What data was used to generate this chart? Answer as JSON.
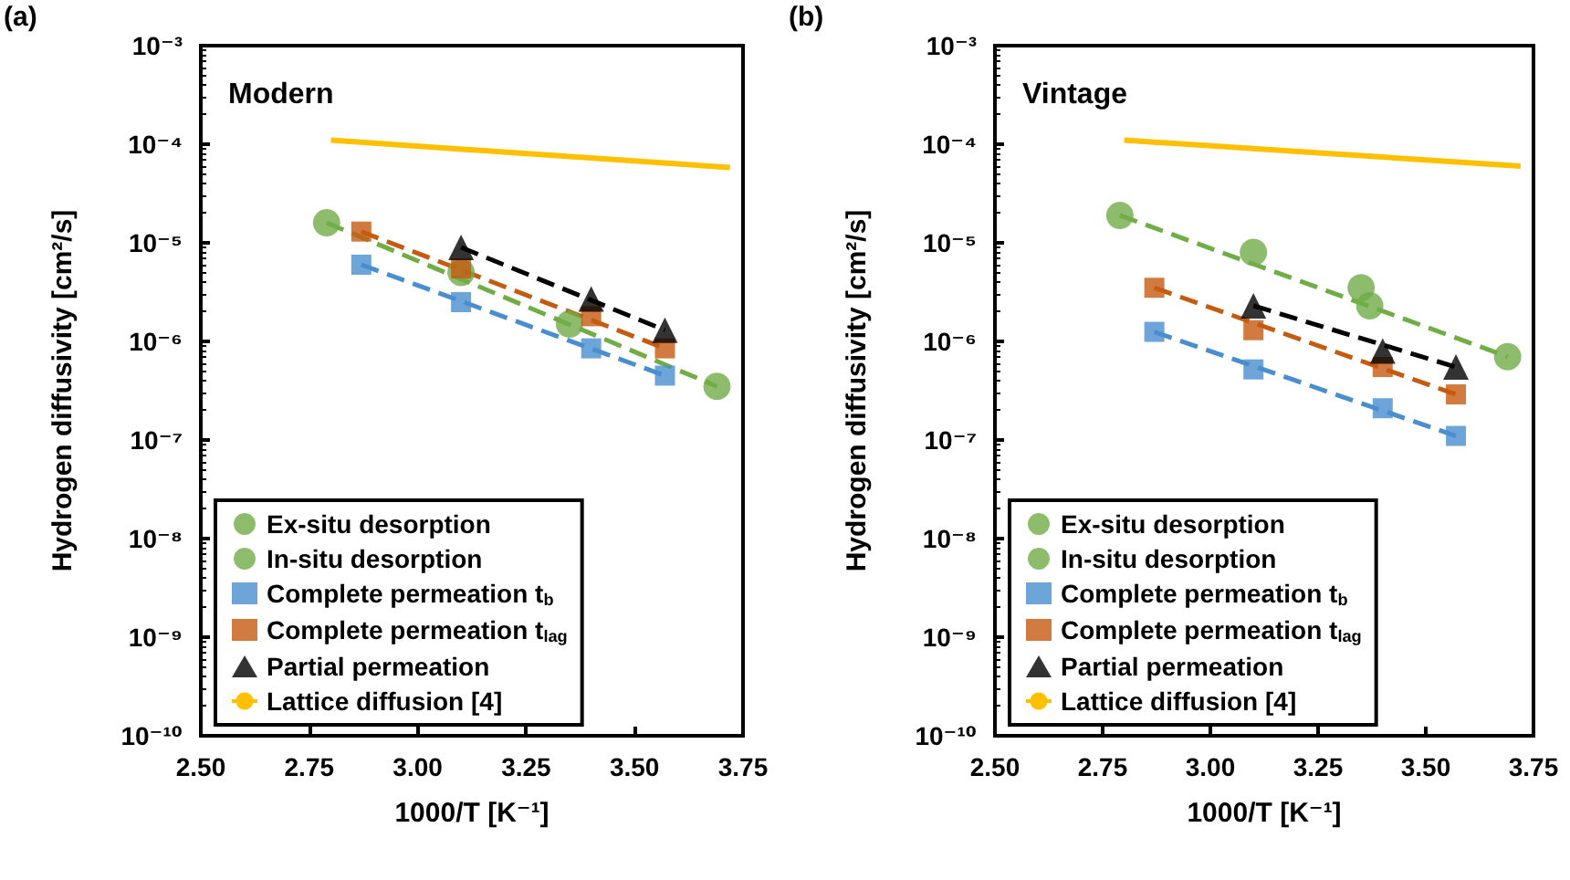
{
  "chart_data": [
    {
      "type": "scatter",
      "title": "Modern",
      "annotations": [
        "(a)"
      ],
      "xlabel": "1000/T [K⁻¹]",
      "ylabel": "Hydrogen diffusivity [cm²/s]",
      "xlim": [
        2.5,
        3.75
      ],
      "xticks": [
        {
          "value": 2.5,
          "label": "2.50"
        },
        2.75,
        {
          "value": 3.0,
          "label": "3.00"
        },
        3.25,
        {
          "value": 3.5,
          "label": "3.50"
        },
        3.75
      ],
      "ylim": [
        1e-10,
        0.001
      ],
      "yticks": [
        {
          "value": 1e-10,
          "label": "10⁻¹⁰"
        },
        {
          "value": 1e-09,
          "label": "10⁻⁹"
        },
        {
          "value": 1e-08,
          "label": "10⁻⁸"
        },
        {
          "value": 1e-07,
          "label": "10⁻⁷"
        },
        {
          "value": 1e-06,
          "label": "10⁻⁶"
        },
        {
          "value": 1e-05,
          "label": "10⁻⁵"
        },
        {
          "value": 0.0001,
          "label": "10⁻⁴"
        },
        {
          "value": 0.001,
          "label": "10⁻³"
        }
      ],
      "log": "y",
      "grid": false,
      "legend": "bottom left",
      "series": [
        {
          "name": "Ex-situ desorption",
          "color": "#70ad47",
          "marker": "circle",
          "x": [
            2.79,
            3.1,
            3.35
          ],
          "values": [
            1.6e-05,
            5e-06,
            1.5e-06
          ]
        },
        {
          "name": "In-situ desorption",
          "color": "#70ad47",
          "marker": "circle",
          "x": [
            3.69
          ],
          "values": [
            3.5e-07
          ]
        },
        {
          "name": "Complete permeation t$_{b}$",
          "color": "#4a8ed0",
          "marker": "square",
          "x": [
            2.87,
            3.1,
            3.4,
            3.57
          ],
          "values": [
            6e-06,
            2.5e-06,
            8.5e-07,
            4.5e-07
          ]
        },
        {
          "name": "Complete permeation t$_{lag}$",
          "color": "#c55a11",
          "marker": "square",
          "x": [
            2.87,
            3.1,
            3.4,
            3.57
          ],
          "values": [
            1.3e-05,
            5.5e-06,
            1.8e-06,
            8.5e-07
          ]
        },
        {
          "name": "Partial permeation",
          "color": "#000000",
          "marker": "triangle",
          "x": [
            3.1,
            3.4,
            3.57
          ],
          "values": [
            9e-06,
            2.7e-06,
            1.3e-06
          ]
        },
        {
          "name": "Lattice diffusion [4]",
          "type": "line",
          "color": "#ffc000",
          "marker": "none",
          "line_style": "solid",
          "x": [
            2.8,
            3.72
          ],
          "values": [
            0.00011,
            5.8e-05
          ]
        },
        {
          "type": "line",
          "color": "#70ad47",
          "marker": "none",
          "line_style": "dashed",
          "x": [
            2.79,
            3.69
          ],
          "values": [
            1.6e-05,
            3.5e-07
          ]
        },
        {
          "type": "line",
          "color": "#4a8ed0",
          "marker": "none",
          "line_style": "dashed",
          "x": [
            2.87,
            3.57
          ],
          "values": [
            6e-06,
            4.5e-07
          ]
        },
        {
          "type": "line",
          "color": "#c55a11",
          "marker": "none",
          "line_style": "dashed",
          "x": [
            2.87,
            3.57
          ],
          "values": [
            1.3e-05,
            8.5e-07
          ]
        },
        {
          "type": "line",
          "color": "#000000",
          "marker": "none",
          "line_style": "dashed",
          "x": [
            3.1,
            3.57
          ],
          "values": [
            9e-06,
            1.3e-06
          ]
        }
      ]
    },
    {
      "type": "scatter",
      "title": "Vintage",
      "annotations": [
        "(b)"
      ],
      "xlabel": "1000/T [K⁻¹]",
      "ylabel": "Hydrogen diffusivity [cm²/s]",
      "xlim": [
        2.5,
        3.75
      ],
      "xticks": [
        {
          "value": 2.5,
          "label": "2.50"
        },
        2.75,
        {
          "value": 3.0,
          "label": "3.00"
        },
        3.25,
        {
          "value": 3.5,
          "label": "3.50"
        },
        3.75
      ],
      "ylim": [
        1e-10,
        0.001
      ],
      "yticks": [
        {
          "value": 1e-10,
          "label": "10⁻¹⁰"
        },
        {
          "value": 1e-09,
          "label": "10⁻⁹"
        },
        {
          "value": 1e-08,
          "label": "10⁻⁸"
        },
        {
          "value": 1e-07,
          "label": "10⁻⁷"
        },
        {
          "value": 1e-06,
          "label": "10⁻⁶"
        },
        {
          "value": 1e-05,
          "label": "10⁻⁵"
        },
        {
          "value": 0.0001,
          "label": "10⁻⁴"
        },
        {
          "value": 0.001,
          "label": "10⁻³"
        }
      ],
      "log": "y",
      "grid": false,
      "legend": "bottom left",
      "series": [
        {
          "name": "Ex-situ desorption",
          "color": "#70ad47",
          "marker": "circle",
          "x": [
            2.79,
            3.1,
            3.35
          ],
          "values": [
            1.9e-05,
            8e-06,
            3.5e-06
          ]
        },
        {
          "name": "In-situ desorption",
          "color": "#70ad47",
          "marker": "circle",
          "x": [
            3.37,
            3.69
          ],
          "values": [
            2.3e-06,
            7e-07
          ]
        },
        {
          "name": "Complete permeation t$_{b}$",
          "color": "#4a8ed0",
          "marker": "square",
          "x": [
            2.87,
            3.1,
            3.4,
            3.57
          ],
          "values": [
            1.25e-06,
            5.2e-07,
            2.1e-07,
            1.1e-07
          ]
        },
        {
          "name": "Complete permeation t$_{lag}$",
          "color": "#c55a11",
          "marker": "square",
          "x": [
            2.87,
            3.1,
            3.4,
            3.57
          ],
          "values": [
            3.5e-06,
            1.3e-06,
            5.5e-07,
            2.9e-07
          ]
        },
        {
          "name": "Partial permeation",
          "color": "#000000",
          "marker": "triangle",
          "x": [
            3.1,
            3.4,
            3.57
          ],
          "values": [
            2.3e-06,
            8e-07,
            5.5e-07
          ]
        },
        {
          "name": "Lattice diffusion [4]",
          "type": "line",
          "color": "#ffc000",
          "marker": "none",
          "line_style": "solid",
          "x": [
            2.8,
            3.72
          ],
          "values": [
            0.00011,
            6e-05
          ]
        },
        {
          "type": "line",
          "color": "#70ad47",
          "marker": "none",
          "line_style": "dashed",
          "x": [
            2.79,
            3.69
          ],
          "values": [
            1.9e-05,
            7e-07
          ]
        },
        {
          "type": "line",
          "color": "#4a8ed0",
          "marker": "none",
          "line_style": "dashed",
          "x": [
            2.87,
            3.57
          ],
          "values": [
            1.25e-06,
            1.1e-07
          ]
        },
        {
          "type": "line",
          "color": "#c55a11",
          "marker": "none",
          "line_style": "dashed",
          "x": [
            2.87,
            3.57
          ],
          "values": [
            3.5e-06,
            2.9e-07
          ]
        },
        {
          "type": "line",
          "color": "#000000",
          "marker": "none",
          "line_style": "dashed",
          "x": [
            3.1,
            3.57
          ],
          "values": [
            2.3e-06,
            5.5e-07
          ]
        }
      ]
    }
  ]
}
